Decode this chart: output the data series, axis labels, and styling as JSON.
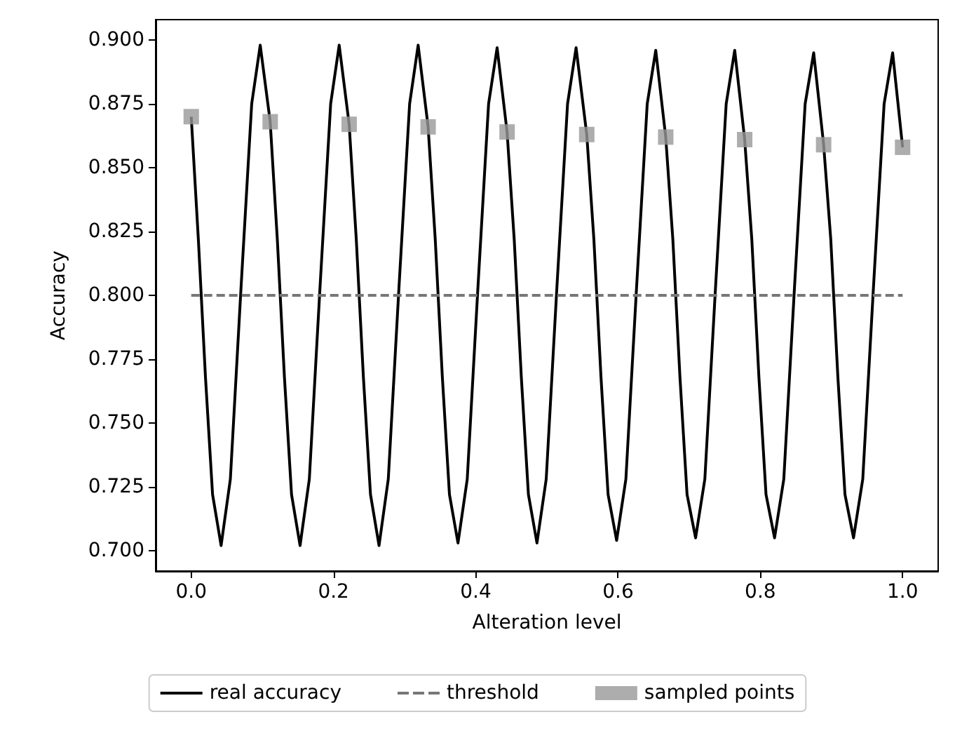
{
  "chart_data": {
    "type": "line",
    "xlabel": "Alteration level",
    "ylabel": "Accuracy",
    "xlim": [
      -0.05,
      1.05
    ],
    "ylim": [
      0.692,
      0.908
    ],
    "xticks": [
      {
        "value": 0,
        "label": "0.0"
      },
      {
        "value": 0.2,
        "label": "0.2"
      },
      {
        "value": 0.4,
        "label": "0.4"
      },
      {
        "value": 0.6,
        "label": "0.6"
      },
      {
        "value": 0.8,
        "label": "0.8"
      },
      {
        "value": 1,
        "label": "1.0"
      }
    ],
    "yticks": [
      {
        "value": 0.7,
        "label": "0.700"
      },
      {
        "value": 0.725,
        "label": "0.725"
      },
      {
        "value": 0.75,
        "label": "0.750"
      },
      {
        "value": 0.775,
        "label": "0.775"
      },
      {
        "value": 0.8,
        "label": "0.800"
      },
      {
        "value": 0.825,
        "label": "0.825"
      },
      {
        "value": 0.85,
        "label": "0.850"
      },
      {
        "value": 0.875,
        "label": "0.875"
      },
      {
        "value": 0.9,
        "label": "0.900"
      }
    ],
    "grid": false,
    "legend": "bottom",
    "series": [
      {
        "name": "real accuracy",
        "type": "line",
        "color": "#000000",
        "marker": "none",
        "line_style": "solid",
        "x": [
          0,
          0.01,
          0.02,
          0.03,
          0.042,
          0.055,
          0.07,
          0.085,
          0.097,
          0.111,
          0.121,
          0.131,
          0.141,
          0.153,
          0.166,
          0.181,
          0.196,
          0.208,
          0.222,
          0.232,
          0.242,
          0.252,
          0.264,
          0.277,
          0.292,
          0.307,
          0.319,
          0.333,
          0.343,
          0.353,
          0.363,
          0.375,
          0.388,
          0.403,
          0.418,
          0.43,
          0.444,
          0.454,
          0.464,
          0.474,
          0.486,
          0.499,
          0.514,
          0.529,
          0.541,
          0.556,
          0.566,
          0.576,
          0.586,
          0.598,
          0.611,
          0.626,
          0.641,
          0.653,
          0.667,
          0.677,
          0.687,
          0.697,
          0.709,
          0.722,
          0.737,
          0.752,
          0.764,
          0.778,
          0.788,
          0.798,
          0.808,
          0.82,
          0.833,
          0.848,
          0.863,
          0.875,
          0.889,
          0.899,
          0.909,
          0.919,
          0.931,
          0.944,
          0.959,
          0.974,
          0.986,
          1.0
        ],
        "values": [
          0.87,
          0.822,
          0.768,
          0.722,
          0.702,
          0.728,
          0.803,
          0.875,
          0.898,
          0.868,
          0.822,
          0.768,
          0.722,
          0.702,
          0.728,
          0.803,
          0.875,
          0.898,
          0.867,
          0.822,
          0.768,
          0.722,
          0.702,
          0.728,
          0.803,
          0.875,
          0.898,
          0.866,
          0.822,
          0.768,
          0.722,
          0.703,
          0.728,
          0.803,
          0.875,
          0.897,
          0.864,
          0.822,
          0.768,
          0.722,
          0.703,
          0.728,
          0.803,
          0.875,
          0.897,
          0.863,
          0.822,
          0.768,
          0.722,
          0.704,
          0.728,
          0.803,
          0.875,
          0.896,
          0.862,
          0.822,
          0.768,
          0.722,
          0.705,
          0.728,
          0.803,
          0.875,
          0.896,
          0.861,
          0.822,
          0.768,
          0.722,
          0.705,
          0.728,
          0.803,
          0.875,
          0.895,
          0.859,
          0.822,
          0.768,
          0.722,
          0.705,
          0.728,
          0.803,
          0.875,
          0.895,
          0.858
        ]
      },
      {
        "name": "threshold",
        "type": "line",
        "color": "#777777",
        "marker": "none",
        "line_style": "dashed",
        "x": [
          0,
          1.0
        ],
        "values": [
          0.8,
          0.8
        ]
      },
      {
        "name": "sampled points",
        "type": "scatter",
        "color": "#999999",
        "marker": "square",
        "x": [
          0,
          0.111,
          0.222,
          0.333,
          0.444,
          0.556,
          0.667,
          0.778,
          0.889,
          1.0
        ],
        "values": [
          0.87,
          0.868,
          0.867,
          0.866,
          0.864,
          0.863,
          0.862,
          0.861,
          0.859,
          0.858
        ]
      }
    ]
  }
}
